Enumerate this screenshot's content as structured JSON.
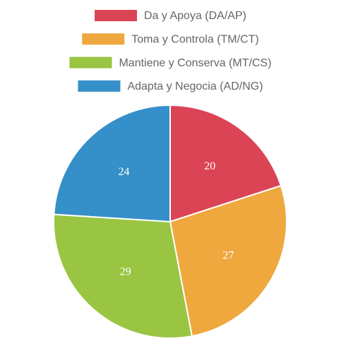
{
  "chart_data": {
    "type": "pie",
    "categories": [
      "Da y Apoya (DA/AP)",
      "Toma y Controla (TM/CT)",
      "Mantiene y Conserva (MT/CS)",
      "Adapta y Negocia (AD/NG)"
    ],
    "values": [
      20,
      27,
      29,
      24
    ],
    "colors": [
      "#db4455",
      "#efa83e",
      "#99c543",
      "#358fc8"
    ],
    "legend": "top"
  }
}
